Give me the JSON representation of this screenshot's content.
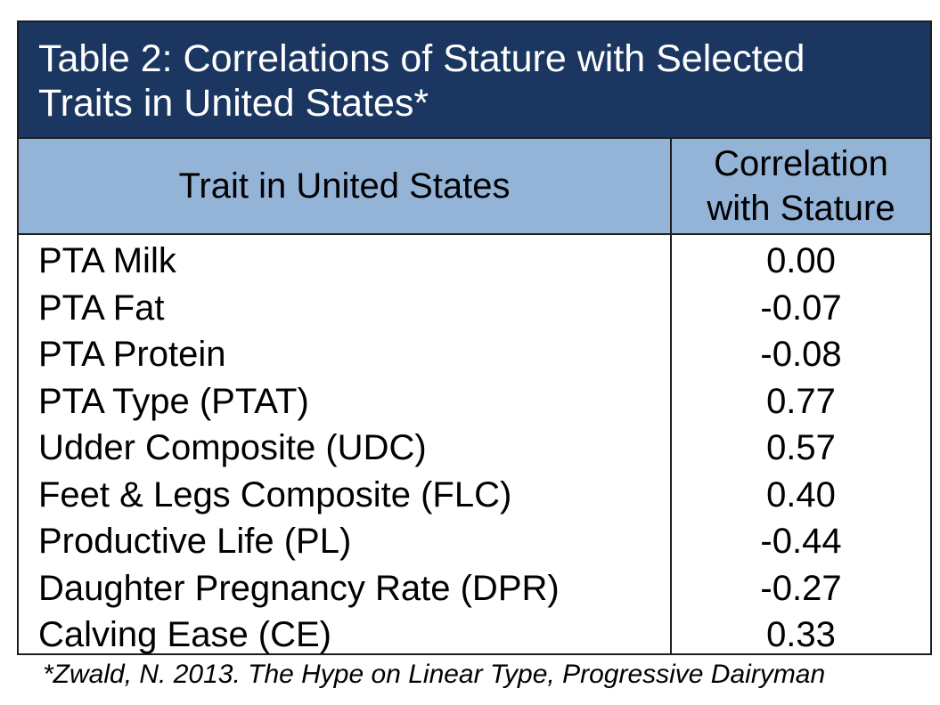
{
  "table": {
    "title": "Table 2: Correlations of Stature with Selected Traits in United States*",
    "header": {
      "trait_col": "Trait in United States",
      "corr_col_line1": "Correlation",
      "corr_col_line2": "with Stature"
    },
    "rows": [
      {
        "trait": "PTA Milk",
        "value": "0.00"
      },
      {
        "trait": "PTA Fat",
        "value": "-0.07"
      },
      {
        "trait": "PTA Protein",
        "value": "-0.08"
      },
      {
        "trait": "PTA Type (PTAT)",
        "value": "0.77"
      },
      {
        "trait": "Udder Composite (UDC)",
        "value": "0.57"
      },
      {
        "trait": "Feet & Legs Composite (FLC)",
        "value": "0.40"
      },
      {
        "trait": "Productive Life (PL)",
        "value": "-0.44"
      },
      {
        "trait": "Daughter Pregnancy Rate (DPR)",
        "value": "-0.27"
      },
      {
        "trait": "Calving Ease (CE)",
        "value": "0.33"
      }
    ]
  },
  "footnote": "*Zwald, N. 2013. The Hype on Linear Type, Progressive Dairyman",
  "colors": {
    "title_bg": "#1b3660",
    "header_bg": "#93b3d7",
    "border": "#1e1e1e"
  }
}
